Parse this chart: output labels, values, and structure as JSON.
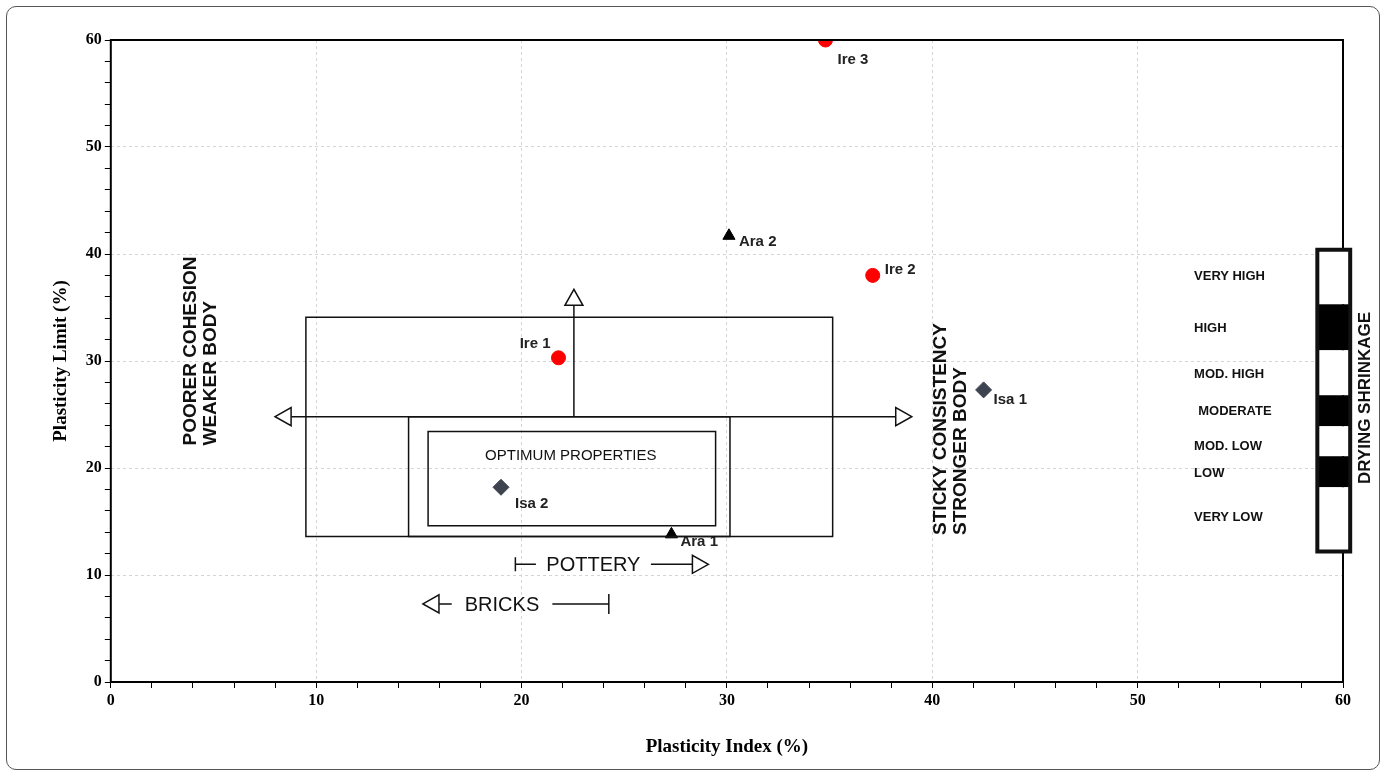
{
  "chart_data": {
    "type": "scatter",
    "xlabel": "Plasticity Index (%)",
    "ylabel": "Plasticity Limit (%)",
    "xlim": [
      0,
      60
    ],
    "ylim": [
      0,
      60
    ],
    "xticks": [
      0,
      {
        "value": 2,
        "label": null
      },
      {
        "value": 4,
        "label": null
      },
      {
        "value": 6,
        "label": null
      },
      {
        "value": 8,
        "label": null
      },
      10,
      {
        "value": 12,
        "label": null
      },
      {
        "value": 14,
        "label": null
      },
      {
        "value": 16,
        "label": null
      },
      {
        "value": 18,
        "label": null
      },
      20,
      {
        "value": 22,
        "label": null
      },
      {
        "value": 24,
        "label": null
      },
      {
        "value": 26,
        "label": null
      },
      {
        "value": 28,
        "label": null
      },
      30,
      {
        "value": 32,
        "label": null
      },
      {
        "value": 34,
        "label": null
      },
      {
        "value": 36,
        "label": null
      },
      {
        "value": 38,
        "label": null
      },
      40,
      {
        "value": 42,
        "label": null
      },
      {
        "value": 44,
        "label": null
      },
      {
        "value": 46,
        "label": null
      },
      {
        "value": 48,
        "label": null
      },
      50,
      {
        "value": 52,
        "label": null
      },
      {
        "value": 54,
        "label": null
      },
      {
        "value": 56,
        "label": null
      },
      {
        "value": 58,
        "label": null
      },
      60
    ],
    "yticks": [
      0,
      {
        "value": 2,
        "label": null
      },
      {
        "value": 4,
        "label": null
      },
      {
        "value": 6,
        "label": null
      },
      {
        "value": 8,
        "label": null
      },
      10,
      {
        "value": 12,
        "label": null
      },
      {
        "value": 14,
        "label": null
      },
      {
        "value": 16,
        "label": null
      },
      {
        "value": 18,
        "label": null
      },
      20,
      {
        "value": 22,
        "label": null
      },
      {
        "value": 24,
        "label": null
      },
      {
        "value": 26,
        "label": null
      },
      {
        "value": 28,
        "label": null
      },
      30,
      {
        "value": 32,
        "label": null
      },
      {
        "value": 34,
        "label": null
      },
      {
        "value": 36,
        "label": null
      },
      {
        "value": 38,
        "label": null
      },
      40,
      {
        "value": 42,
        "label": null
      },
      {
        "value": 44,
        "label": null
      },
      {
        "value": 46,
        "label": null
      },
      {
        "value": 48,
        "label": null
      },
      50,
      {
        "value": 52,
        "label": null
      },
      {
        "value": 54,
        "label": null
      },
      {
        "value": 56,
        "label": null
      },
      {
        "value": 58,
        "label": null
      },
      60
    ],
    "grid": true,
    "legend": false,
    "series": [
      {
        "name": "Ire 1",
        "color": "#ff0000",
        "marker": "circle",
        "x": [
          21.8
        ],
        "values": [
          30.3
        ]
      },
      {
        "name": "Ire 2",
        "color": "#ff0000",
        "marker": "circle",
        "x": [
          37.1
        ],
        "values": [
          38
        ]
      },
      {
        "name": "Ire 3",
        "color": "#ff0000",
        "marker": "circle",
        "x": [
          34.8
        ],
        "values": [
          60
        ]
      },
      {
        "name": "Ara 1",
        "color": "#000000",
        "marker": "triangle",
        "x": [
          27.3
        ],
        "values": [
          13.8
        ]
      },
      {
        "name": "Ara 2",
        "color": "#000000",
        "marker": "triangle",
        "x": [
          30.1
        ],
        "values": [
          41.7
        ]
      },
      {
        "name": "Isa 1",
        "color": "#3d4450",
        "marker": "diamond",
        "x": [
          42.5
        ],
        "values": [
          27.3
        ]
      },
      {
        "name": "Isa 2",
        "color": "#3d4450",
        "marker": "diamond",
        "x": [
          19
        ],
        "values": [
          18.2
        ]
      }
    ],
    "annotations": [
      "POORER COHESION\nWEAKER BODY",
      "STICKY CONSISTENCY\nSTRONGER BODY",
      "OPTIMUM PROPERTIES",
      "POTTERY",
      "BRICKS",
      "VERY HIGH",
      "HIGH",
      "MOD. HIGH",
      "MODERATE",
      "MOD. LOW",
      "LOW",
      "VERY LOW",
      "DRYING SHRINKAGE"
    ]
  }
}
